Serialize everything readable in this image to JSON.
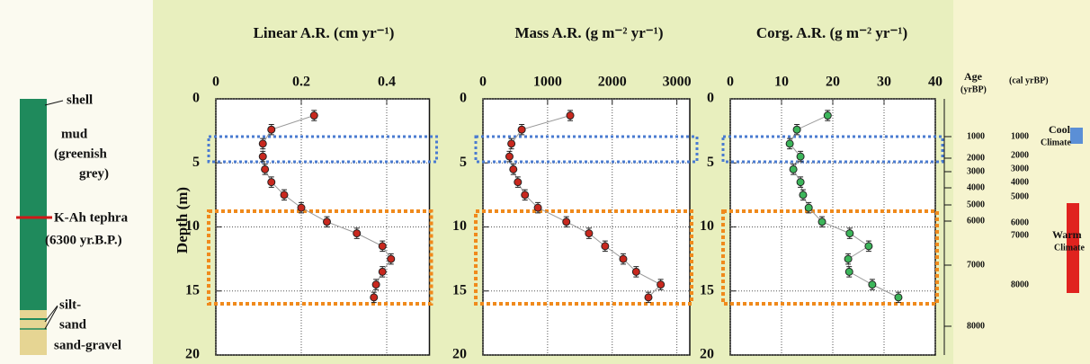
{
  "chart_data": [
    {
      "type": "scatter",
      "title": "Linear A.R. (cm yr⁻¹)",
      "ylabel": "Depth (m)",
      "x": [
        0.23,
        0.13,
        0.11,
        0.11,
        0.115,
        0.13,
        0.16,
        0.2,
        0.26,
        0.33,
        0.39,
        0.41,
        0.39,
        0.375,
        0.37
      ],
      "y": [
        1.3,
        2.4,
        3.5,
        4.5,
        5.5,
        6.5,
        7.5,
        8.5,
        9.6,
        10.5,
        11.5,
        12.5,
        13.5,
        14.5,
        15.5
      ],
      "yerr": 0.4,
      "color": "#c8281e",
      "xlim": [
        0,
        0.5
      ],
      "xticks": [
        0,
        0.2,
        0.4
      ],
      "ylim": [
        0,
        20
      ],
      "yticks": [
        0,
        5,
        10,
        15,
        20
      ],
      "y_inverted": true,
      "grid": true
    },
    {
      "type": "scatter",
      "title": "Mass A.R. (g m⁻² yr⁻¹)",
      "x": [
        1350,
        600,
        440,
        410,
        470,
        540,
        650,
        850,
        1290,
        1640,
        1890,
        2170,
        2370,
        2750,
        2560
      ],
      "y": [
        1.3,
        2.4,
        3.5,
        4.5,
        5.5,
        6.5,
        7.5,
        8.5,
        9.6,
        10.5,
        11.5,
        12.5,
        13.5,
        14.5,
        15.5
      ],
      "yerr": 0.4,
      "color": "#c8281e",
      "xlim": [
        0,
        3200
      ],
      "xticks": [
        0,
        1000,
        2000,
        3000
      ],
      "ylim": [
        0,
        20
      ],
      "yticks": [
        0,
        5,
        10,
        15,
        20
      ],
      "y_inverted": true,
      "grid": true
    },
    {
      "type": "scatter",
      "title": "Corg. A.R. (g m⁻² yr⁻¹)",
      "x": [
        19,
        13,
        11.6,
        13.7,
        12.3,
        13.7,
        14.2,
        15.3,
        17.9,
        23.3,
        27,
        23,
        23.2,
        27.7,
        32.8
      ],
      "y": [
        1.3,
        2.4,
        3.5,
        4.5,
        5.5,
        6.5,
        7.5,
        8.5,
        9.6,
        10.5,
        11.5,
        12.5,
        13.5,
        14.5,
        15.5
      ],
      "yerr": 0.4,
      "color": "#3cb55a",
      "xlim": [
        0,
        40
      ],
      "xticks": [
        0,
        10,
        20,
        30,
        40
      ],
      "ylim": [
        0,
        20
      ],
      "yticks": [
        0,
        5,
        10,
        15,
        20
      ],
      "y_inverted": true,
      "grid": true
    }
  ],
  "core_log": {
    "labels": [
      "shell",
      "mud",
      "(greenish",
      "grey)",
      "K-Ah tephra",
      "(6300 yr.B.P.)",
      "silt-",
      "sand",
      "sand-gravel"
    ]
  },
  "age_axis": {
    "title": "Age",
    "unit": "(yrBP)",
    "cal_unit": "(cal yrBP)",
    "yrbp_labels": [
      "1000",
      "2000",
      "3000",
      "4000",
      "5000",
      "6000",
      "7000",
      "8000"
    ],
    "cal_labels": [
      "1000",
      "2000",
      "3000",
      "4000",
      "5000",
      "6000",
      "7000",
      "8000"
    ]
  },
  "climate": {
    "cool": "Cool",
    "cool_sub": "Climate",
    "warm": "Warm",
    "warm_sub": "Climate"
  }
}
